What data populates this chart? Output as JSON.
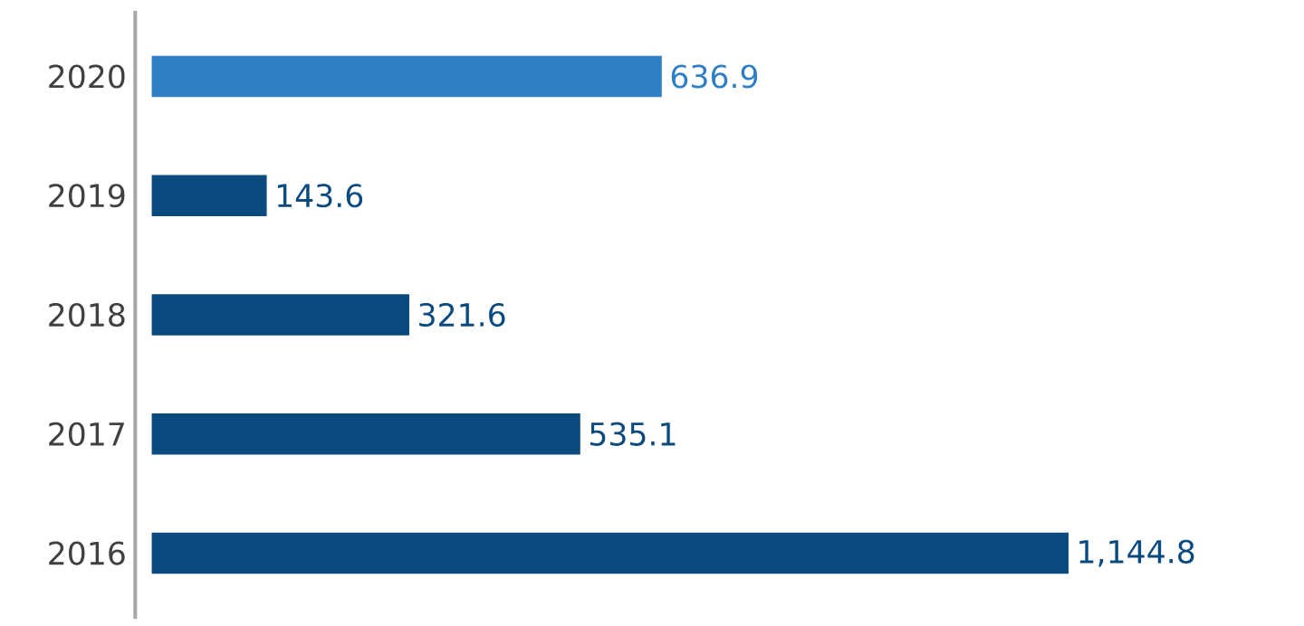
{
  "chart_data": {
    "type": "bar",
    "orientation": "horizontal",
    "categories": [
      "2020",
      "2019",
      "2018",
      "2017",
      "2016"
    ],
    "values": [
      636.9,
      143.6,
      321.6,
      535.1,
      1144.8
    ],
    "colors": [
      "#2e7fc4",
      "#0a4a7f",
      "#0a4a7f",
      "#0a4a7f",
      "#0a4a7f"
    ],
    "value_labels": [
      "636.9",
      "143.6",
      "321.6",
      "535.1",
      "1,144.8"
    ]
  }
}
